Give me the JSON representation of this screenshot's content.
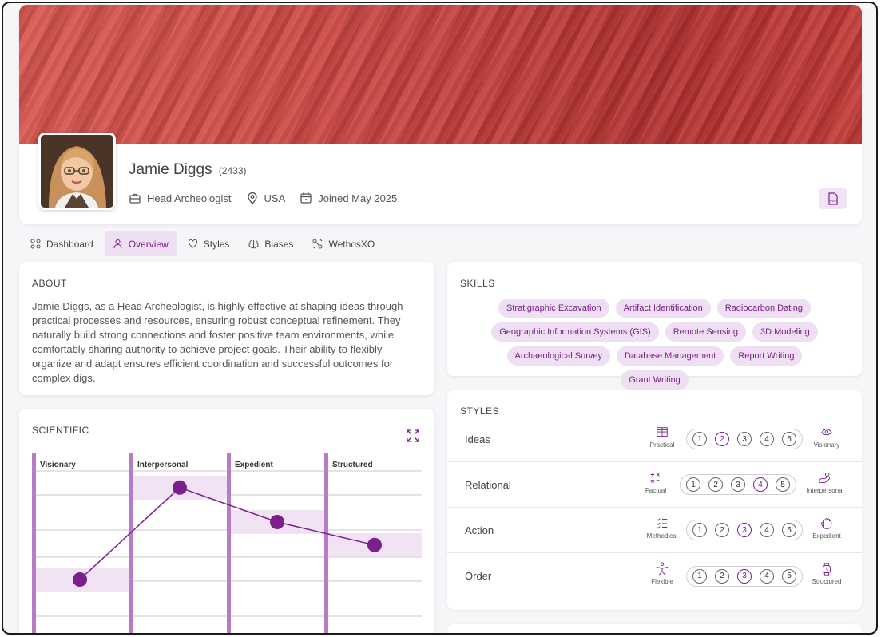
{
  "profile": {
    "name": "Jamie Diggs",
    "id": "(2433)",
    "role": "Head Archeologist",
    "location": "USA",
    "joined": "Joined May 2025",
    "pdf_icon": "pdf-icon"
  },
  "tabs": [
    {
      "label": "Dashboard",
      "icon": "dashboard-icon",
      "active": false
    },
    {
      "label": "Overview",
      "icon": "user-icon",
      "active": true
    },
    {
      "label": "Styles",
      "icon": "heart-icon",
      "active": false
    },
    {
      "label": "Biases",
      "icon": "brain-icon",
      "active": false
    },
    {
      "label": "WethosXO",
      "icon": "network-icon",
      "active": false
    }
  ],
  "about": {
    "title": "ABOUT",
    "text": "Jamie Diggs, as a Head Archeologist, is highly effective at shaping ideas through practical processes and resources, ensuring robust conceptual refinement. They naturally build strong connections and foster positive team environments, while comfortably sharing authority to achieve project goals. Their ability to flexibly organize and adapt ensures efficient coordination and successful outcomes for complex digs."
  },
  "skills": {
    "title": "SKILLS",
    "items": [
      "Stratigraphic Excavation",
      "Artifact Identification",
      "Radiocarbon Dating",
      "Geographic Information Systems (GIS)",
      "Remote Sensing",
      "3D Modeling",
      "Archaeological Survey",
      "Database Management",
      "Report Writing",
      "Grant Writing"
    ]
  },
  "styles": {
    "title": "STYLES",
    "rows": [
      {
        "label": "Ideas",
        "left": "Practical",
        "right": "Visionary",
        "selected": 2
      },
      {
        "label": "Relational",
        "left": "Factual",
        "right": "Interpersonal",
        "selected": 4
      },
      {
        "label": "Action",
        "left": "Methodical",
        "right": "Expedient",
        "selected": 3
      },
      {
        "label": "Order",
        "left": "Flexible",
        "right": "Structured",
        "selected": 3
      }
    ],
    "scale": [
      "1",
      "2",
      "3",
      "4",
      "5"
    ]
  },
  "scientific": {
    "title": "SCIENTIFIC",
    "chart_data": {
      "type": "line",
      "categories": [
        "Visionary",
        "Interpersonal",
        "Expedient",
        "Structured"
      ],
      "values": [
        0.3,
        0.78,
        0.6,
        0.48
      ],
      "title": "",
      "grid": true,
      "accent": "#7a1f8c",
      "column_color": "#b77cc7"
    }
  },
  "colors": {
    "accent": "#7a1f8c",
    "chip_bg": "#efdff2",
    "banner": "#c23d3a"
  }
}
